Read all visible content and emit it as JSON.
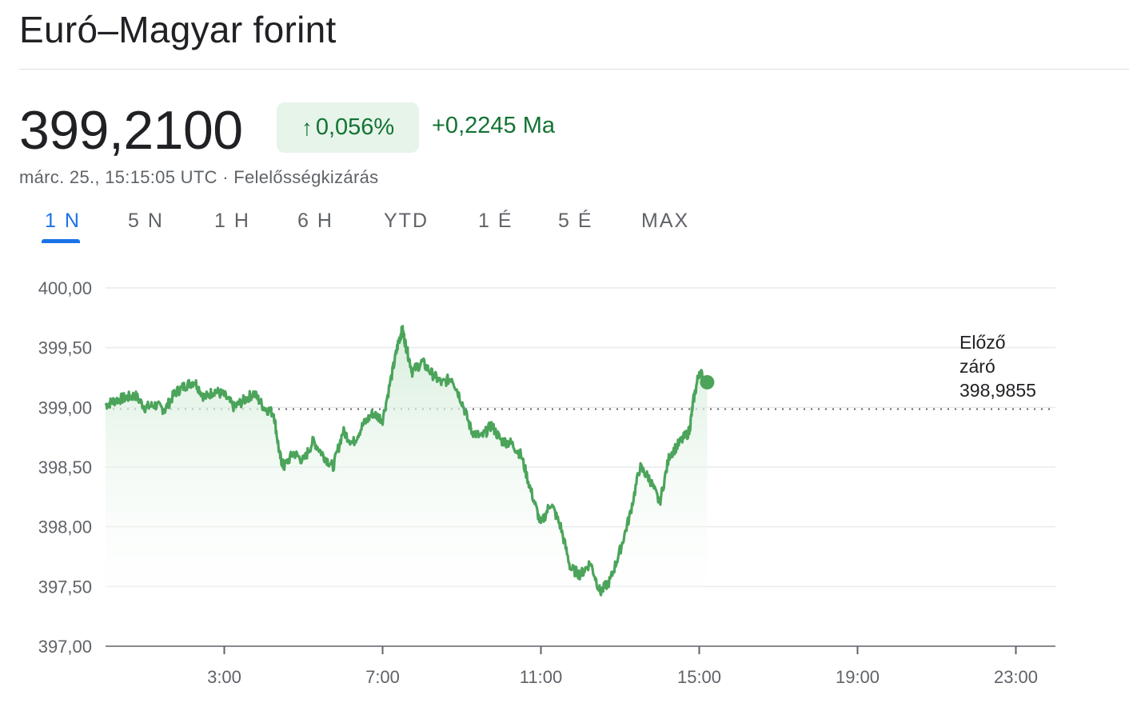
{
  "header": {
    "title": "Euró–Magyar forint",
    "price": "399,2100",
    "change_arrow": "↑",
    "change_percent": "0,056%",
    "change_abs": "+0,2245 Ma",
    "timestamp": "márc. 25., 15:15:05 UTC · Felelősségkizárás"
  },
  "tabs": [
    {
      "label": "1 N",
      "active": true
    },
    {
      "label": "5 N"
    },
    {
      "label": "1 H"
    },
    {
      "label": "6 H"
    },
    {
      "label": "YTD"
    },
    {
      "label": "1 É"
    },
    {
      "label": "5 É"
    },
    {
      "label": "MAX"
    }
  ],
  "colors": {
    "line": "#4ba45a",
    "fill_top": "#d3ecd8",
    "grid": "#e8eaed",
    "accent": "#1a73e8",
    "positive": "#137333"
  },
  "chart_data": {
    "type": "area",
    "ylim": [
      397.0,
      400.0
    ],
    "xlim_hours": [
      0,
      24
    ],
    "yticks": [
      "400,00",
      "399,50",
      "399,00",
      "398,50",
      "398,00",
      "397,50",
      "397,00"
    ],
    "ytick_values": [
      400.0,
      399.5,
      399.0,
      398.5,
      398.0,
      397.5,
      397.0
    ],
    "xticks": [
      "3:00",
      "7:00",
      "11:00",
      "15:00",
      "19:00",
      "23:00"
    ],
    "xtick_values": [
      3,
      7,
      11,
      15,
      19,
      23
    ],
    "previous_close": {
      "value": 398.9855,
      "label_lines": [
        "Előző",
        "záró",
        "398,9855"
      ]
    },
    "x_hours": [
      0.0,
      0.25,
      0.5,
      0.75,
      1.0,
      1.25,
      1.5,
      1.75,
      2.0,
      2.25,
      2.5,
      2.75,
      3.0,
      3.25,
      3.5,
      3.75,
      4.0,
      4.25,
      4.4,
      4.5,
      4.75,
      5.0,
      5.25,
      5.5,
      5.75,
      6.0,
      6.25,
      6.5,
      6.75,
      7.0,
      7.25,
      7.4,
      7.5,
      7.6,
      7.75,
      8.0,
      8.25,
      8.5,
      8.75,
      9.0,
      9.25,
      9.5,
      9.75,
      10.0,
      10.25,
      10.5,
      10.75,
      11.0,
      11.25,
      11.5,
      11.75,
      12.0,
      12.25,
      12.5,
      12.75,
      13.0,
      13.25,
      13.5,
      13.75,
      14.0,
      14.25,
      14.5,
      14.75,
      14.85,
      15.0,
      15.2
    ],
    "values": [
      399.02,
      399.06,
      399.08,
      399.1,
      399.0,
      399.02,
      398.98,
      399.12,
      399.18,
      399.22,
      399.08,
      399.14,
      399.1,
      399.0,
      399.06,
      399.12,
      399.0,
      398.95,
      398.6,
      398.5,
      398.62,
      398.55,
      398.72,
      398.6,
      398.5,
      398.8,
      398.7,
      398.85,
      398.95,
      398.9,
      399.3,
      399.55,
      399.65,
      399.5,
      399.3,
      399.38,
      399.28,
      399.2,
      399.25,
      399.05,
      398.8,
      398.75,
      398.85,
      398.72,
      398.7,
      398.6,
      398.3,
      398.02,
      398.2,
      398.0,
      397.65,
      397.6,
      397.7,
      397.45,
      397.55,
      397.8,
      398.1,
      398.5,
      398.4,
      398.2,
      398.6,
      398.7,
      398.8,
      399.05,
      399.3,
      399.21
    ],
    "last_value": 399.21
  }
}
